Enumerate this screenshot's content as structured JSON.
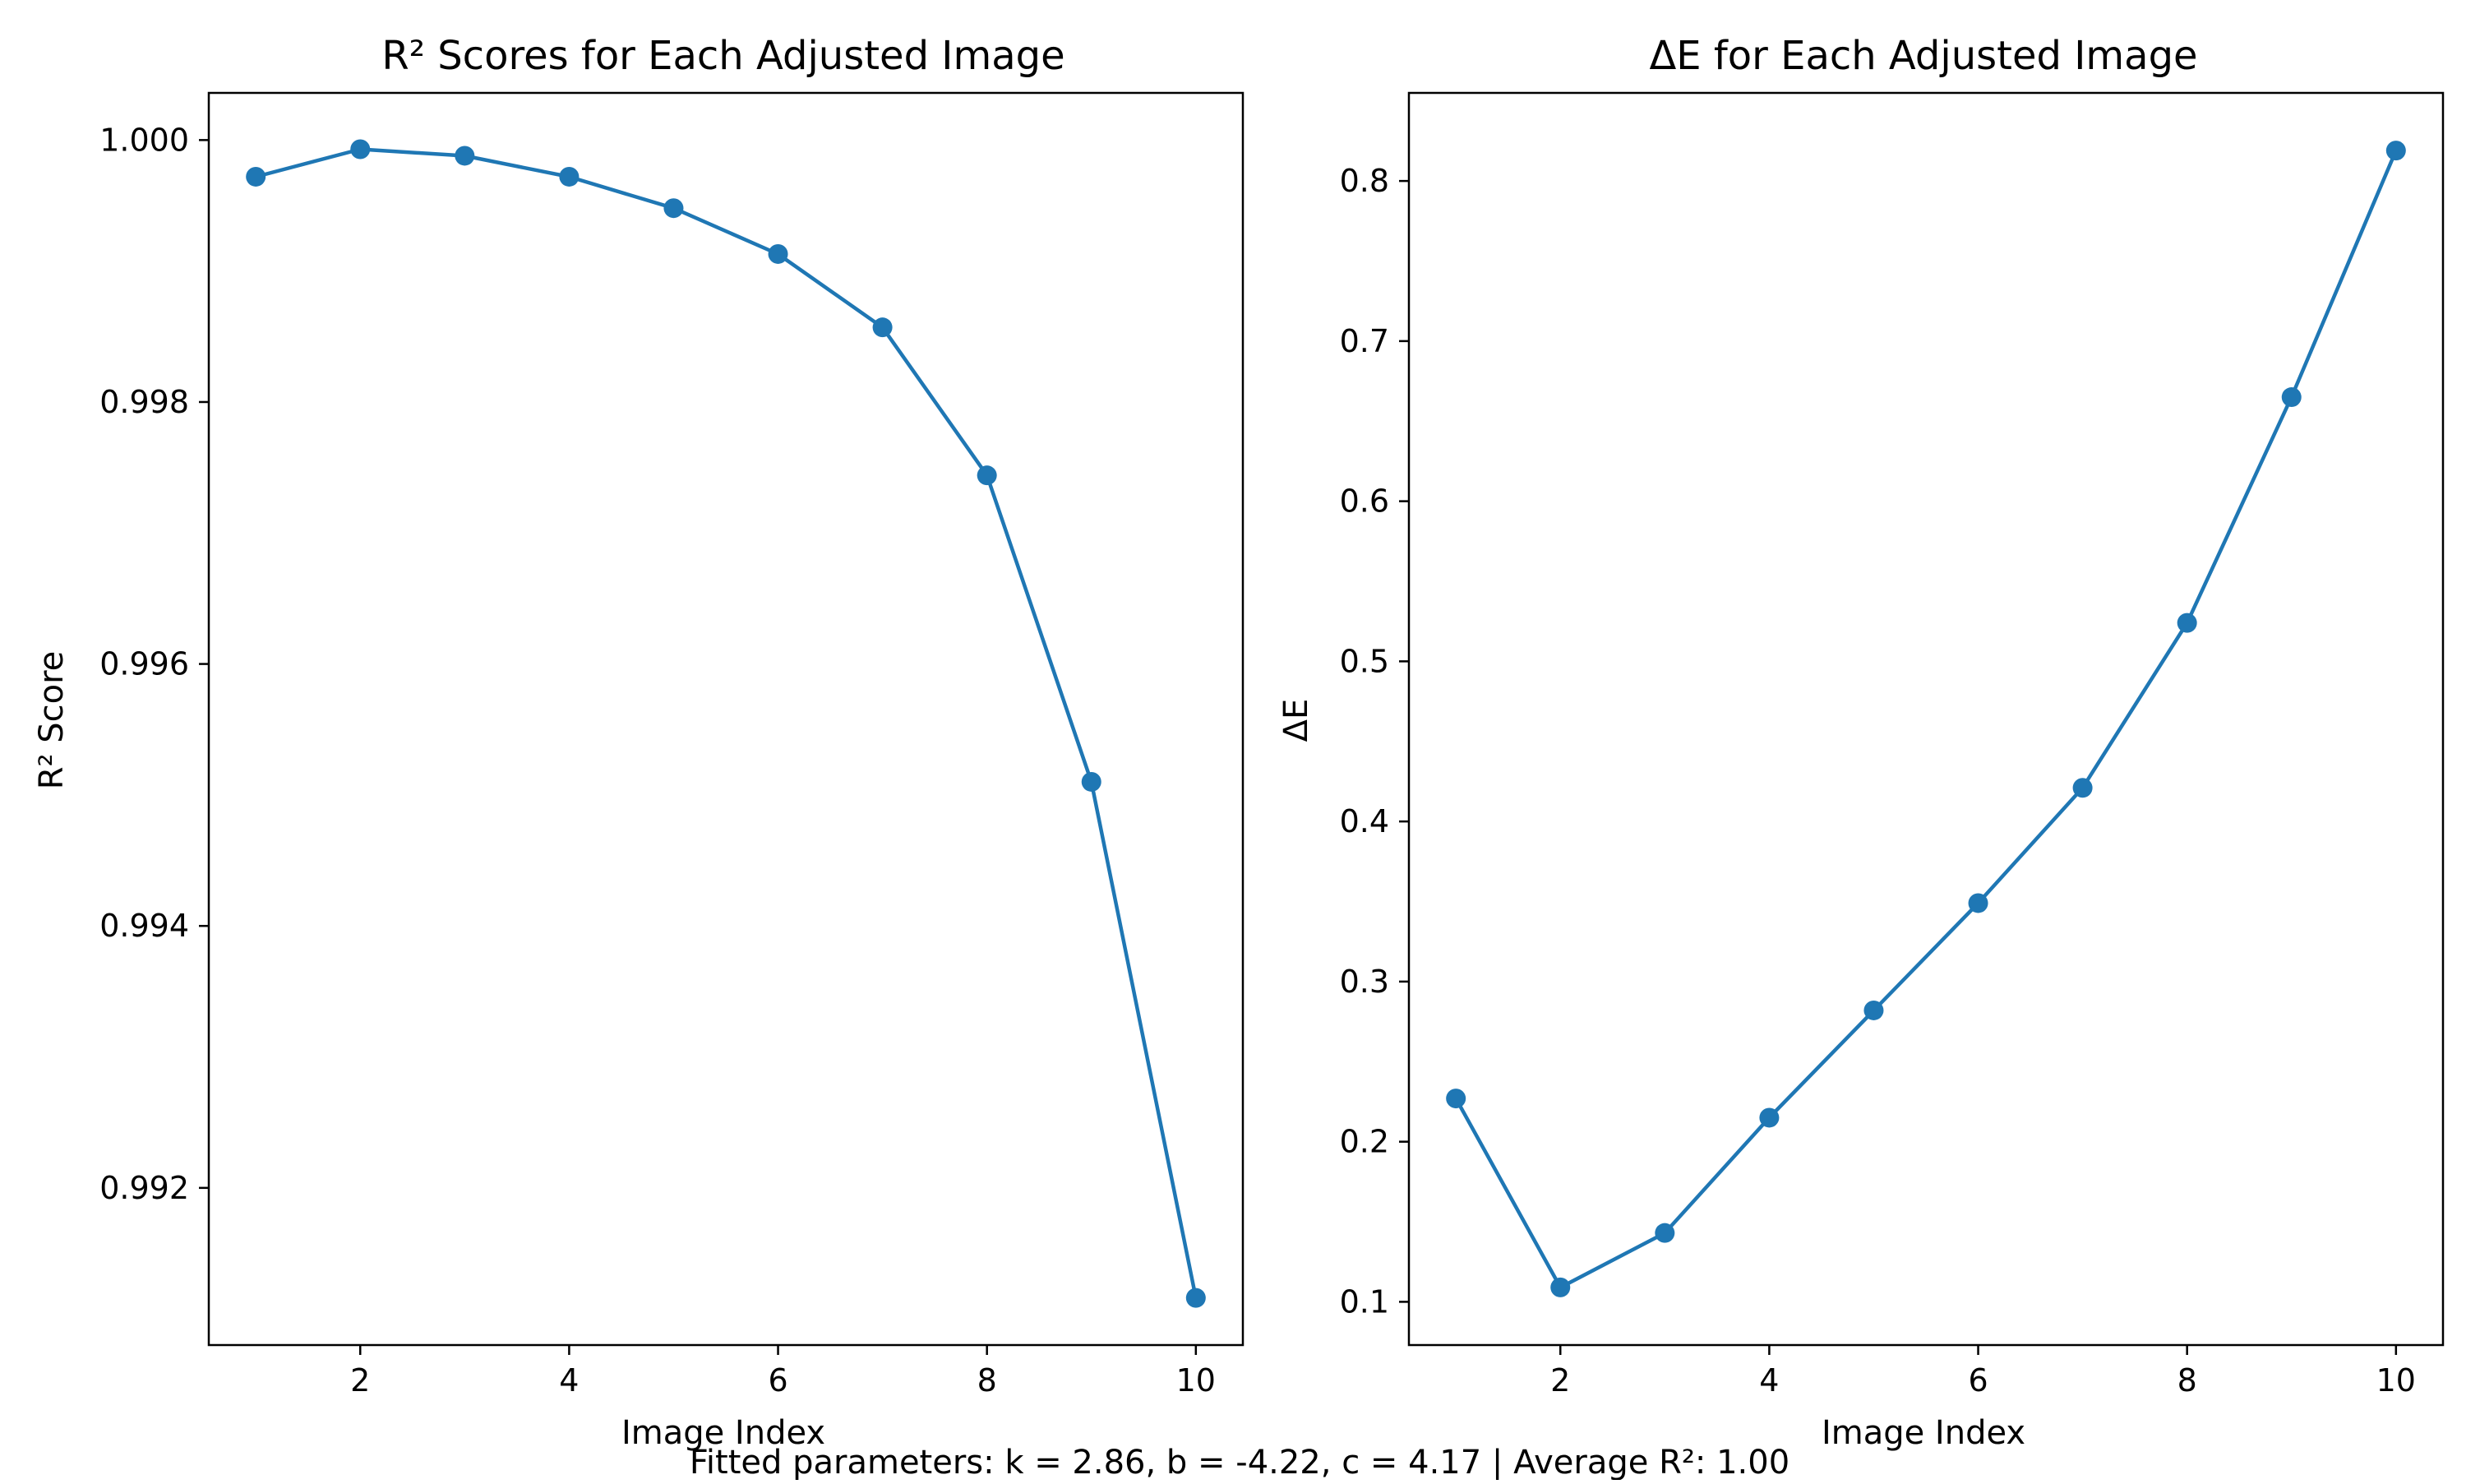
{
  "figure": {
    "caption": "Fitted parameters: k = 2.86, b = -4.22, c = 4.17 | Average R²: 1.00",
    "line_color": "#1f77b4"
  },
  "chart_data": [
    {
      "type": "line",
      "title": "R² Scores for Each Adjusted Image",
      "xlabel": "Image Index",
      "ylabel": "R² Score",
      "x": [
        1,
        2,
        3,
        4,
        5,
        6,
        7,
        8,
        9,
        10
      ],
      "series": [
        {
          "values": [
            0.99972,
            0.99993,
            0.99988,
            0.99972,
            0.99948,
            0.99913,
            0.99857,
            0.99744,
            0.9951,
            0.99116
          ],
          "color": "#1f77b4",
          "marker": "circle"
        }
      ],
      "xlim": [
        0.55,
        10.45
      ],
      "ylim": [
        0.9908,
        1.00036
      ],
      "xticks": [
        2,
        4,
        6,
        8,
        10
      ],
      "xtick_labels": [
        "2",
        "4",
        "6",
        "8",
        "10"
      ],
      "yticks": [
        0.992,
        0.994,
        0.996,
        0.998,
        1.0
      ],
      "ytick_labels": [
        "0.992",
        "0.994",
        "0.996",
        "0.998",
        "1.000"
      ],
      "grid": false
    },
    {
      "type": "line",
      "title": "ΔE for Each Adjusted Image",
      "xlabel": "Image Index",
      "ylabel": "ΔE",
      "x": [
        1,
        2,
        3,
        4,
        5,
        6,
        7,
        8,
        9,
        10
      ],
      "series": [
        {
          "values": [
            0.227,
            0.109,
            0.143,
            0.215,
            0.282,
            0.349,
            0.421,
            0.524,
            0.665,
            0.819
          ],
          "color": "#1f77b4",
          "marker": "circle"
        }
      ],
      "xlim": [
        0.55,
        10.45
      ],
      "ylim": [
        0.073,
        0.855
      ],
      "xticks": [
        2,
        4,
        6,
        8,
        10
      ],
      "xtick_labels": [
        "2",
        "4",
        "6",
        "8",
        "10"
      ],
      "yticks": [
        0.1,
        0.2,
        0.3,
        0.4,
        0.5,
        0.6,
        0.7,
        0.8
      ],
      "ytick_labels": [
        "0.1",
        "0.2",
        "0.3",
        "0.4",
        "0.5",
        "0.6",
        "0.7",
        "0.8"
      ],
      "grid": false
    }
  ]
}
